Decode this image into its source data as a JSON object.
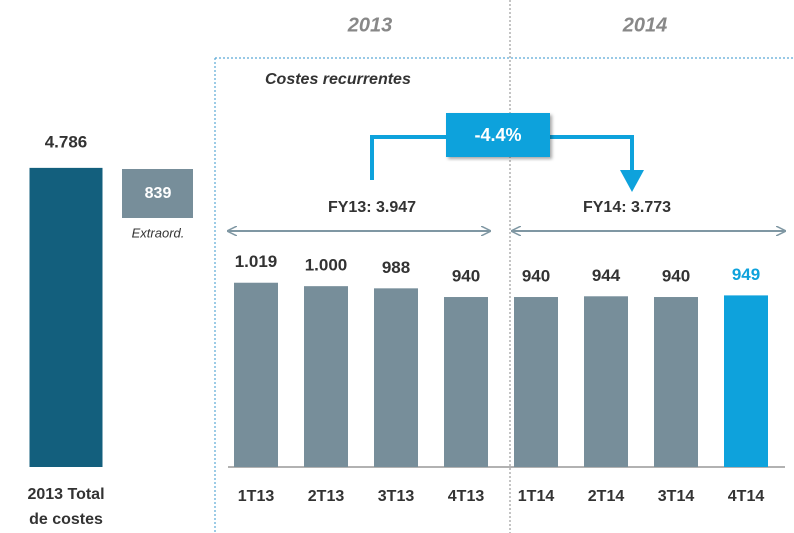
{
  "chart_data": [
    {
      "type": "bar",
      "categories": [
        "2013 Total de costes"
      ],
      "values": [
        4786
      ],
      "value_labels": [
        "4.786"
      ],
      "color": "#135f7d",
      "ylim": [
        0,
        5000
      ],
      "extraordinary": {
        "value": 839,
        "label": "Extraord."
      }
    },
    {
      "type": "bar",
      "title": "Costes recurrentes",
      "groups": [
        "2013",
        "2014"
      ],
      "categories": [
        "1T13",
        "2T13",
        "3T13",
        "4T13",
        "1T14",
        "2T14",
        "3T14",
        "4T14"
      ],
      "values": [
        1019,
        1000,
        988,
        940,
        940,
        944,
        940,
        949
      ],
      "value_labels": [
        "1.019",
        "1.000",
        "988",
        "940",
        "940",
        "944",
        "940",
        "949"
      ],
      "colors": [
        "#778e9a",
        "#778e9a",
        "#778e9a",
        "#778e9a",
        "#778e9a",
        "#778e9a",
        "#778e9a",
        "#0ea2dc"
      ],
      "ylim": [
        0,
        1200
      ],
      "annotations": [
        "FY13: 3.947",
        "FY14: 3.773",
        "-4.4%"
      ]
    }
  ]
}
